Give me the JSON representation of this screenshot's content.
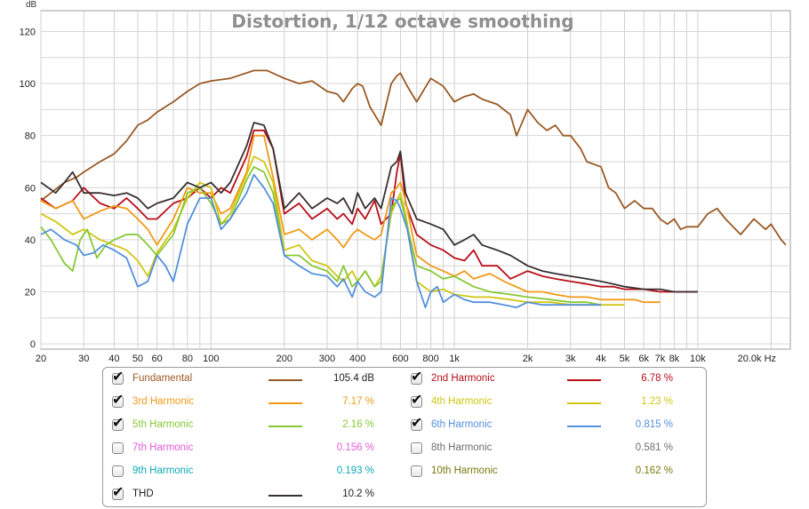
{
  "chart_data": {
    "type": "line",
    "title": "Distortion, 1/12 octave smoothing",
    "ylabel": "dB",
    "xunit": "Hz",
    "xscale": "log",
    "xlim": [
      20,
      24000
    ],
    "ylim": [
      -2,
      128
    ],
    "y_ticks": [
      "0",
      "20",
      "40",
      "60",
      "80",
      "100",
      "120"
    ],
    "y_tick_values": [
      0,
      20,
      40,
      60,
      80,
      100,
      120
    ],
    "x_ticks": [
      {
        "f": 20,
        "label": "20"
      },
      {
        "f": 30,
        "label": "30"
      },
      {
        "f": 40,
        "label": "40"
      },
      {
        "f": 50,
        "label": "50"
      },
      {
        "f": 60,
        "label": "60"
      },
      {
        "f": 80,
        "label": "80"
      },
      {
        "f": 100,
        "label": "100"
      },
      {
        "f": 200,
        "label": "200"
      },
      {
        "f": 300,
        "label": "300"
      },
      {
        "f": 400,
        "label": "400"
      },
      {
        "f": 600,
        "label": "600"
      },
      {
        "f": 800,
        "label": "800"
      },
      {
        "f": 1000,
        "label": "1k"
      },
      {
        "f": 2000,
        "label": "2k"
      },
      {
        "f": 3000,
        "label": "3k"
      },
      {
        "f": 4000,
        "label": "4k"
      },
      {
        "f": 5000,
        "label": "5k"
      },
      {
        "f": 6000,
        "label": "6k"
      },
      {
        "f": 7000,
        "label": "7k"
      },
      {
        "f": 8000,
        "label": "8k"
      },
      {
        "f": 10000,
        "label": "10k"
      },
      {
        "f": 20000,
        "label": "20.0k Hz"
      }
    ],
    "grid": true,
    "series": [
      {
        "name": "Fundamental",
        "color": "#9a5a25",
        "value": "105.4 dB",
        "checked": true,
        "x": [
          20,
          22,
          25,
          28,
          30,
          35,
          40,
          45,
          50,
          55,
          60,
          70,
          80,
          90,
          100,
          120,
          150,
          170,
          200,
          230,
          260,
          300,
          330,
          350,
          380,
          400,
          420,
          450,
          500,
          550,
          580,
          600,
          640,
          700,
          800,
          900,
          1000,
          1100,
          1200,
          1300,
          1500,
          1700,
          1800,
          2000,
          2200,
          2400,
          2600,
          2800,
          3000,
          3300,
          3500,
          4000,
          4300,
          4600,
          5000,
          5500,
          6000,
          6500,
          7000,
          7500,
          8000,
          8500,
          9000,
          10000,
          11000,
          12000,
          13000,
          15000,
          17000,
          19000,
          20000,
          22000,
          23000
        ],
        "y": [
          55,
          58,
          62,
          64,
          66,
          70,
          73,
          78,
          84,
          86,
          89,
          93,
          97,
          100,
          101,
          102,
          105,
          105,
          102,
          100,
          101,
          97,
          96,
          93,
          98,
          100,
          99,
          91,
          84,
          100,
          103,
          104,
          99,
          93,
          102,
          99,
          93,
          95,
          96,
          94,
          92,
          88,
          80,
          90,
          85,
          82,
          84,
          80,
          80,
          75,
          70,
          68,
          60,
          58,
          52,
          55,
          52,
          52,
          48,
          46,
          48,
          44,
          45,
          45,
          50,
          52,
          48,
          42,
          48,
          44,
          46,
          40,
          38
        ]
      },
      {
        "name": "2nd Harmonic",
        "color": "#b8101a",
        "value": "6.78 %",
        "checked": true,
        "x": [
          20,
          23,
          27,
          30,
          35,
          40,
          45,
          50,
          55,
          60,
          70,
          80,
          90,
          100,
          110,
          120,
          140,
          150,
          165,
          180,
          200,
          230,
          260,
          300,
          330,
          350,
          380,
          400,
          430,
          470,
          500,
          550,
          580,
          600,
          630,
          700,
          800,
          900,
          1000,
          1100,
          1200,
          1300,
          1500,
          1700,
          2000,
          2300,
          2600,
          3000,
          3500,
          4000,
          4500,
          5000,
          5500,
          6000,
          7000,
          8000,
          9000,
          10000
        ],
        "y": [
          56,
          52,
          55,
          60,
          54,
          52,
          56,
          52,
          48,
          48,
          54,
          56,
          60,
          56,
          60,
          58,
          72,
          82,
          82,
          75,
          50,
          54,
          48,
          52,
          48,
          50,
          46,
          52,
          48,
          55,
          46,
          50,
          66,
          73,
          54,
          42,
          38,
          36,
          33,
          32,
          36,
          30,
          30,
          25,
          28,
          26,
          25,
          24,
          23,
          22,
          22,
          21,
          21,
          21,
          20,
          20,
          20,
          20
        ]
      },
      {
        "name": "3rd Harmonic",
        "color": "#f09a18",
        "value": "7.17 %",
        "checked": true,
        "x": [
          20,
          23,
          27,
          30,
          35,
          40,
          45,
          50,
          55,
          60,
          70,
          80,
          90,
          100,
          110,
          120,
          140,
          150,
          165,
          180,
          200,
          230,
          260,
          300,
          330,
          350,
          380,
          400,
          430,
          470,
          500,
          550,
          580,
          600,
          630,
          700,
          800,
          900,
          1000,
          1100,
          1200,
          1400,
          1600,
          2000,
          2300,
          2600,
          3000,
          3500,
          4000,
          4500,
          5000,
          5500,
          6000,
          7000
        ],
        "y": [
          55,
          52,
          55,
          48,
          51,
          53,
          52,
          48,
          44,
          38,
          48,
          60,
          58,
          58,
          50,
          52,
          66,
          80,
          80,
          64,
          42,
          44,
          40,
          44,
          40,
          37,
          42,
          44,
          42,
          40,
          42,
          58,
          60,
          62,
          55,
          34,
          30,
          28,
          26,
          28,
          25,
          27,
          24,
          20,
          20,
          19,
          18,
          18,
          17,
          17,
          17,
          17,
          16,
          16
        ]
      },
      {
        "name": "4th Harmonic",
        "color": "#d0c712",
        "value": "1.23 %",
        "checked": true,
        "x": [
          20,
          23,
          27,
          30,
          35,
          40,
          45,
          50,
          55,
          60,
          70,
          80,
          90,
          100,
          110,
          120,
          140,
          150,
          165,
          180,
          200,
          230,
          260,
          300,
          330,
          350,
          380,
          400,
          430,
          470,
          500,
          550,
          580,
          600,
          630,
          700,
          800,
          900,
          1000,
          1200,
          1400,
          1700,
          2000,
          2500,
          3000,
          3500,
          4000,
          4500,
          5000
        ],
        "y": [
          50,
          47,
          42,
          44,
          40,
          38,
          36,
          32,
          26,
          35,
          44,
          56,
          62,
          60,
          46,
          50,
          65,
          72,
          70,
          62,
          36,
          38,
          32,
          30,
          26,
          24,
          28,
          24,
          28,
          22,
          26,
          50,
          55,
          58,
          50,
          24,
          20,
          21,
          19,
          18,
          18,
          17,
          16,
          16,
          15,
          15,
          15,
          15,
          15
        ]
      },
      {
        "name": "5th Harmonic",
        "color": "#88c835",
        "value": "2.16 %",
        "checked": true,
        "x": [
          20,
          22,
          25,
          27,
          29,
          31,
          34,
          37,
          40,
          45,
          50,
          55,
          60,
          70,
          80,
          90,
          100,
          110,
          120,
          140,
          150,
          165,
          180,
          200,
          230,
          260,
          300,
          330,
          350,
          380,
          400,
          430,
          470,
          500,
          550,
          580,
          600,
          630,
          700,
          800,
          900,
          1000,
          1200,
          1400,
          1700,
          2000,
          2500,
          3000,
          3500,
          4000
        ],
        "y": [
          45,
          40,
          31,
          28,
          40,
          44,
          33,
          38,
          40,
          42,
          42,
          38,
          34,
          42,
          58,
          60,
          54,
          46,
          48,
          63,
          68,
          66,
          58,
          34,
          34,
          30,
          28,
          24,
          30,
          22,
          24,
          28,
          22,
          24,
          52,
          55,
          56,
          48,
          30,
          28,
          25,
          26,
          22,
          20,
          19,
          18,
          17,
          16,
          16,
          15
        ]
      },
      {
        "name": "6th Harmonic",
        "color": "#5590dd",
        "value": "0.815 %",
        "checked": true,
        "x": [
          20,
          22,
          25,
          28,
          30,
          33,
          36,
          40,
          45,
          50,
          55,
          60,
          65,
          70,
          80,
          90,
          100,
          110,
          120,
          140,
          150,
          165,
          180,
          200,
          230,
          260,
          300,
          330,
          350,
          380,
          400,
          430,
          470,
          500,
          550,
          580,
          600,
          640,
          700,
          760,
          800,
          850,
          900,
          1000,
          1100,
          1200,
          1400,
          1600,
          1800,
          2000,
          2300,
          2600,
          3000,
          3500,
          4000
        ],
        "y": [
          42,
          44,
          40,
          38,
          34,
          35,
          38,
          36,
          33,
          22,
          24,
          34,
          30,
          24,
          46,
          56,
          56,
          44,
          48,
          58,
          65,
          60,
          54,
          34,
          30,
          27,
          26,
          22,
          25,
          18,
          24,
          20,
          18,
          20,
          56,
          55,
          52,
          44,
          24,
          14,
          20,
          22,
          16,
          19,
          17,
          16,
          16,
          15,
          14,
          16,
          15,
          15,
          15,
          15,
          15
        ]
      },
      {
        "name": "7th Harmonic",
        "color": "#e05cd8",
        "value": "0.156 %",
        "checked": false
      },
      {
        "name": "8th Harmonic",
        "color": "#6e6e6e",
        "value": "0.581 %",
        "checked": false
      },
      {
        "name": "9th Harmonic",
        "color": "#10a9b8",
        "value": "0.193 %",
        "checked": false
      },
      {
        "name": "10th Harmonic",
        "color": "#7a7a10",
        "value": "0.162 %",
        "checked": false
      },
      {
        "name": "THD",
        "color": "#3a3030",
        "value": "10.2 %",
        "checked": true,
        "x": [
          20,
          23,
          25,
          27,
          30,
          35,
          40,
          45,
          50,
          55,
          60,
          70,
          80,
          90,
          100,
          110,
          120,
          140,
          150,
          165,
          180,
          200,
          230,
          260,
          300,
          330,
          350,
          380,
          400,
          430,
          470,
          500,
          550,
          580,
          600,
          630,
          700,
          800,
          900,
          1000,
          1100,
          1200,
          1300,
          1500,
          1700,
          2000,
          2300,
          2600,
          3000,
          3500,
          4000,
          4500,
          5000,
          6000,
          7000,
          8000,
          9000,
          10000
        ],
        "y": [
          62,
          58,
          62,
          66,
          58,
          58,
          57,
          58,
          56,
          52,
          54,
          56,
          62,
          60,
          62,
          58,
          62,
          76,
          85,
          84,
          75,
          52,
          58,
          52,
          56,
          54,
          56,
          50,
          58,
          52,
          56,
          52,
          68,
          70,
          74,
          58,
          48,
          46,
          44,
          38,
          40,
          42,
          38,
          36,
          34,
          30,
          28,
          27,
          26,
          25,
          24,
          23,
          22,
          21,
          21,
          20,
          20,
          20
        ]
      }
    ]
  }
}
